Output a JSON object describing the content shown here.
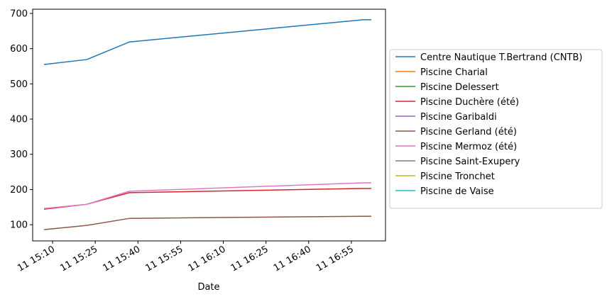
{
  "chart_data": {
    "type": "line",
    "x_label": "Date",
    "x": [
      "11 15:07",
      "11 15:22",
      "11 15:37",
      "11 16:59",
      "11 17:02"
    ],
    "xlim": [
      "11 15:03",
      "11 17:07"
    ],
    "xticks": [
      "11 15:10",
      "11 15:25",
      "11 15:40",
      "11 15:55",
      "11 16:10",
      "11 16:25",
      "11 16:40",
      "11 16:55"
    ],
    "ylim": [
      54,
      712
    ],
    "yticks": [
      100,
      200,
      300,
      400,
      500,
      600,
      700
    ],
    "legend": "right",
    "series": [
      {
        "name": "Centre Nautique T.Bertrand (CNTB)",
        "color": "#1f77b4",
        "values": [
          555,
          569,
          619,
          682,
          682
        ]
      },
      {
        "name": "Piscine Charial",
        "color": "#ff7f0e",
        "values": [
          null,
          null,
          null,
          null,
          null
        ]
      },
      {
        "name": "Piscine Delessert",
        "color": "#2ca02c",
        "values": [
          null,
          null,
          null,
          null,
          null
        ]
      },
      {
        "name": "Piscine Duchère (été)",
        "color": "#d62728",
        "values": [
          144,
          158,
          191,
          203,
          203
        ]
      },
      {
        "name": "Piscine Garibaldi",
        "color": "#9467bd",
        "values": [
          null,
          null,
          null,
          null,
          null
        ]
      },
      {
        "name": "Piscine Gerland (été)",
        "color": "#8c564b",
        "values": [
          86,
          98,
          118,
          124,
          124
        ]
      },
      {
        "name": "Piscine Mermoz (été)",
        "color": "#e377c2",
        "values": [
          146,
          158,
          195,
          219,
          219
        ]
      },
      {
        "name": "Piscine Saint-Exupery",
        "color": "#7f7f7f",
        "values": [
          null,
          null,
          null,
          null,
          null
        ]
      },
      {
        "name": "Piscine Tronchet",
        "color": "#bcbd22",
        "values": [
          null,
          null,
          null,
          null,
          null
        ]
      },
      {
        "name": "Piscine de Vaise",
        "color": "#17becf",
        "values": [
          null,
          null,
          null,
          null,
          null
        ]
      }
    ]
  }
}
